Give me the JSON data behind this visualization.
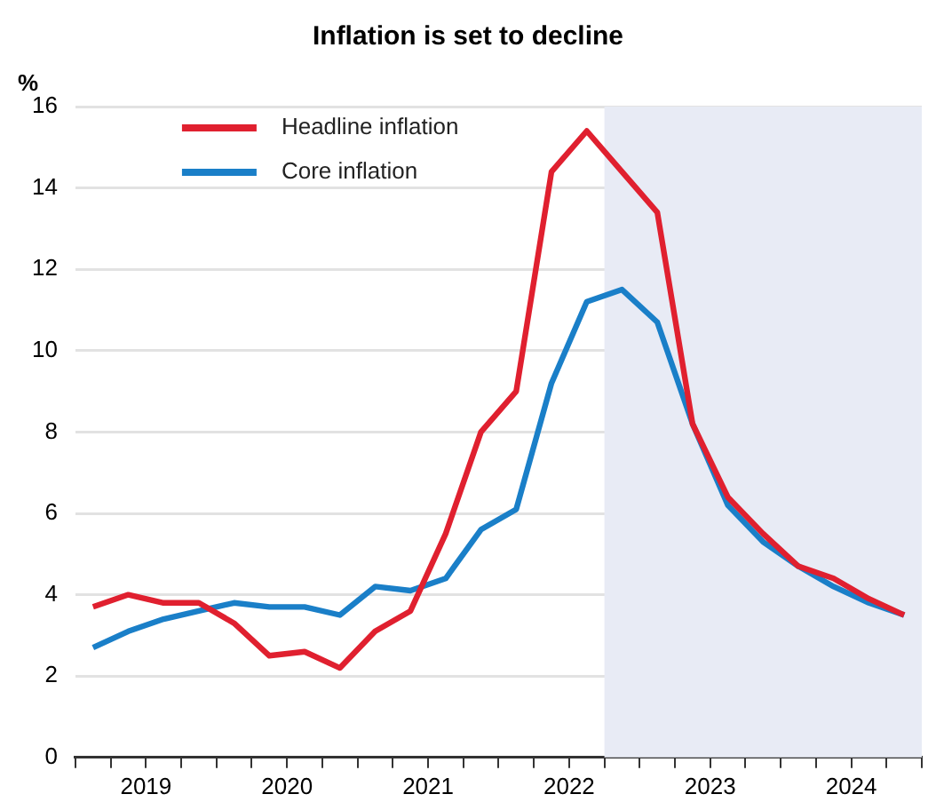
{
  "chart_data": {
    "type": "line",
    "title": "Inflation is set to decline",
    "ylabel": "%",
    "x": [
      2019.125,
      2019.375,
      2019.625,
      2019.875,
      2020.125,
      2020.375,
      2020.625,
      2020.875,
      2021.125,
      2021.375,
      2021.625,
      2021.875,
      2022.125,
      2022.375,
      2022.625,
      2022.875,
      2023.125,
      2023.375,
      2023.625,
      2023.875,
      2024.125,
      2024.375,
      2024.625,
      2024.875
    ],
    "series": [
      {
        "name": "Headline inflation",
        "color": "#e0202f",
        "values": [
          3.7,
          4.0,
          3.8,
          3.8,
          3.3,
          2.5,
          2.6,
          2.2,
          3.1,
          3.6,
          5.5,
          8.0,
          9.0,
          14.4,
          15.4,
          14.4,
          13.4,
          8.2,
          6.4,
          5.5,
          4.7,
          4.4,
          3.9,
          3.5
        ]
      },
      {
        "name": "Core inflation",
        "color": "#1a7fc8",
        "values": [
          2.7,
          3.1,
          3.4,
          3.6,
          3.8,
          3.7,
          3.7,
          3.5,
          4.2,
          4.1,
          4.4,
          5.6,
          6.1,
          9.2,
          11.2,
          11.5,
          10.7,
          8.2,
          6.2,
          5.3,
          4.7,
          4.2,
          3.8,
          3.5
        ]
      }
    ],
    "xlim": [
      2019,
      2025
    ],
    "xticks": [
      {
        "value": 2019,
        "label": null
      },
      {
        "value": 2019.25,
        "label": null
      },
      {
        "value": 2019.5,
        "label": "2019"
      },
      {
        "value": 2019.75,
        "label": null
      },
      {
        "value": 2020,
        "label": null
      },
      {
        "value": 2020.25,
        "label": null
      },
      {
        "value": 2020.5,
        "label": "2020"
      },
      {
        "value": 2020.75,
        "label": null
      },
      {
        "value": 2021,
        "label": null
      },
      {
        "value": 2021.25,
        "label": null
      },
      {
        "value": 2021.5,
        "label": "2021"
      },
      {
        "value": 2021.75,
        "label": null
      },
      {
        "value": 2022,
        "label": null
      },
      {
        "value": 2022.25,
        "label": null
      },
      {
        "value": 2022.5,
        "label": "2022"
      },
      {
        "value": 2022.75,
        "label": null
      },
      {
        "value": 2023,
        "label": null
      },
      {
        "value": 2023.25,
        "label": null
      },
      {
        "value": 2023.5,
        "label": "2023"
      },
      {
        "value": 2023.75,
        "label": null
      },
      {
        "value": 2024,
        "label": null
      },
      {
        "value": 2024.25,
        "label": null
      },
      {
        "value": 2024.5,
        "label": "2024"
      },
      {
        "value": 2024.75,
        "label": null
      },
      {
        "value": 2025,
        "label": null
      }
    ],
    "ylim": [
      0,
      16
    ],
    "yticks": [
      0,
      2,
      4,
      6,
      8,
      10,
      12,
      14,
      16
    ],
    "bands": [
      {
        "axis": "x",
        "from": 2022.75,
        "to": 2025,
        "color": "#e8ebf5"
      }
    ],
    "grid": "y",
    "legend": "top left",
    "marker": "none",
    "line_style": "solid"
  }
}
